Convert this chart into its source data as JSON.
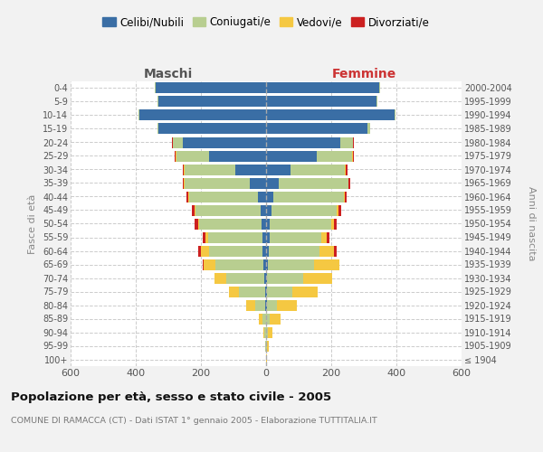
{
  "age_groups": [
    "100+",
    "95-99",
    "90-94",
    "85-89",
    "80-84",
    "75-79",
    "70-74",
    "65-69",
    "60-64",
    "55-59",
    "50-54",
    "45-49",
    "40-44",
    "35-39",
    "30-34",
    "25-29",
    "20-24",
    "15-19",
    "10-14",
    "5-9",
    "0-4"
  ],
  "birth_years": [
    "≤ 1904",
    "1905-1909",
    "1910-1914",
    "1915-1919",
    "1920-1924",
    "1925-1929",
    "1930-1934",
    "1935-1939",
    "1940-1944",
    "1945-1949",
    "1950-1954",
    "1955-1959",
    "1960-1964",
    "1965-1969",
    "1970-1974",
    "1975-1979",
    "1980-1984",
    "1985-1989",
    "1990-1994",
    "1995-1999",
    "2000-2004"
  ],
  "maschi_celibi": [
    0,
    0,
    0,
    1,
    2,
    4,
    6,
    8,
    10,
    12,
    15,
    18,
    25,
    50,
    95,
    175,
    255,
    330,
    390,
    330,
    340
  ],
  "maschi_coniugati": [
    1,
    3,
    5,
    10,
    30,
    78,
    115,
    148,
    165,
    165,
    190,
    198,
    212,
    200,
    155,
    100,
    30,
    4,
    2,
    2,
    2
  ],
  "maschi_vedovi": [
    0,
    1,
    4,
    12,
    28,
    32,
    38,
    36,
    26,
    8,
    4,
    3,
    2,
    2,
    2,
    2,
    2,
    0,
    0,
    0,
    0
  ],
  "maschi_divorziati": [
    0,
    0,
    0,
    0,
    0,
    0,
    0,
    2,
    8,
    10,
    10,
    8,
    5,
    3,
    3,
    3,
    2,
    0,
    0,
    0,
    0
  ],
  "femmine_nubili": [
    0,
    0,
    0,
    1,
    2,
    4,
    4,
    6,
    8,
    10,
    12,
    16,
    22,
    40,
    75,
    155,
    228,
    312,
    395,
    340,
    348
  ],
  "femmine_coniugate": [
    1,
    3,
    5,
    11,
    30,
    76,
    110,
    140,
    155,
    160,
    188,
    202,
    218,
    212,
    168,
    110,
    38,
    7,
    3,
    2,
    2
  ],
  "femmine_vedove": [
    1,
    4,
    14,
    33,
    62,
    78,
    88,
    78,
    46,
    16,
    8,
    5,
    3,
    2,
    2,
    2,
    2,
    0,
    0,
    0,
    0
  ],
  "femmine_divorziate": [
    0,
    0,
    0,
    0,
    0,
    0,
    2,
    2,
    8,
    8,
    8,
    8,
    5,
    5,
    5,
    3,
    2,
    0,
    0,
    0,
    0
  ],
  "color_celibi": "#3a6ea5",
  "color_coniugati": "#b8ce90",
  "color_vedovi": "#f5c842",
  "color_divorziati": "#cc2020",
  "bg_color": "#f2f2f2",
  "plot_bg": "#ffffff",
  "grid_color": "#cccccc",
  "xlim": 600,
  "title": "Popolazione per età, sesso e stato civile - 2005",
  "subtitle": "COMUNE DI RAMACCA (CT) - Dati ISTAT 1° gennaio 2005 - Elaborazione TUTTITALIA.IT",
  "ylabel_left": "Fasce di età",
  "ylabel_right": "Anni di nascita",
  "label_maschi": "Maschi",
  "label_femmine": "Femmine",
  "legend_labels": [
    "Celibi/Nubili",
    "Coniugati/e",
    "Vedovi/e",
    "Divorziati/e"
  ]
}
